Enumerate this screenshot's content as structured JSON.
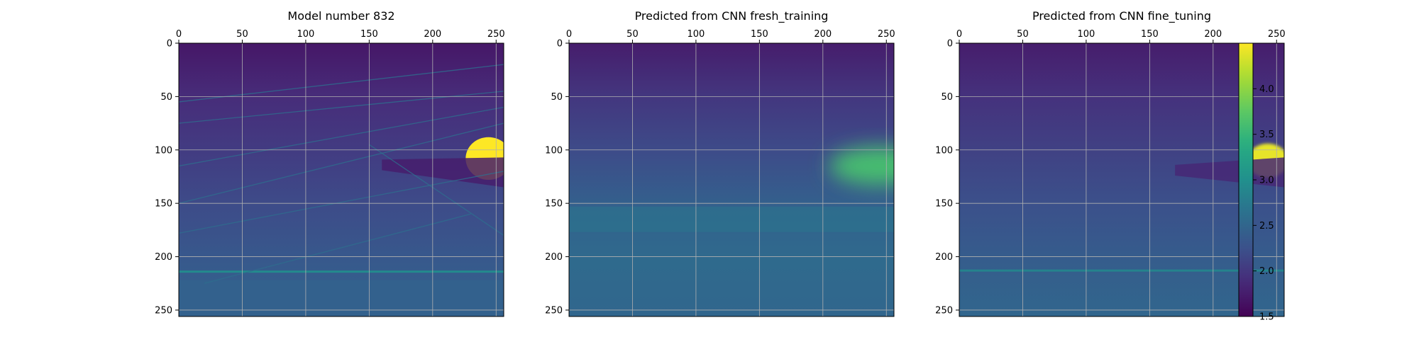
{
  "chart_data": {
    "type": "heatmap",
    "colormap": "viridis",
    "grid": true,
    "panels": [
      {
        "title": "Model number 832",
        "x_ticks": [
          "0",
          "50",
          "100",
          "150",
          "200",
          "250"
        ],
        "y_ticks": [
          "0",
          "50",
          "100",
          "150",
          "200",
          "250"
        ],
        "xlim": [
          0,
          256
        ],
        "ylim": [
          256,
          0
        ],
        "background_levels": [
          1.7,
          1.9,
          2.05,
          2.2,
          2.35,
          2.5
        ],
        "features": [
          {
            "kind": "blob",
            "center": [
              244,
              108
            ],
            "radius": [
              18,
              20
            ],
            "value": 4.5
          },
          {
            "kind": "wedge-band",
            "from": [
              160,
              115
            ],
            "to": [
              256,
              125
            ],
            "value": 1.75
          },
          {
            "kind": "bright-line",
            "y": 214,
            "value": 3.0
          },
          {
            "kind": "lower-layer",
            "y_from": 222,
            "value": 2.45
          }
        ]
      },
      {
        "title": "Predicted from CNN fresh_training",
        "x_ticks": [
          "0",
          "50",
          "100",
          "150",
          "200",
          "250"
        ],
        "y_ticks": [
          "0",
          "50",
          "100",
          "150",
          "200",
          "250"
        ],
        "xlim": [
          0,
          256
        ],
        "ylim": [
          256,
          0
        ],
        "background_levels": [
          1.75,
          2.0,
          2.2,
          2.45,
          2.55,
          2.5
        ],
        "features": [
          {
            "kind": "blob",
            "center": [
              245,
              115
            ],
            "radius": [
              40,
              18
            ],
            "value": 3.6
          },
          {
            "kind": "band",
            "y": 165,
            "value": 2.7
          }
        ]
      },
      {
        "title": "Predicted from CNN fine_tuning",
        "x_ticks": [
          "0",
          "50",
          "100",
          "150",
          "200",
          "250"
        ],
        "y_ticks": [
          "0",
          "50",
          "100",
          "150",
          "200",
          "250"
        ],
        "xlim": [
          0,
          256
        ],
        "ylim": [
          256,
          0
        ],
        "background_levels": [
          1.75,
          1.95,
          2.1,
          2.25,
          2.4,
          2.5
        ],
        "features": [
          {
            "kind": "blob",
            "center": [
              243,
              110
            ],
            "radius": [
              16,
              16
            ],
            "value": 4.4
          },
          {
            "kind": "bright-line",
            "y": 213,
            "value": 2.9
          },
          {
            "kind": "wedge-band",
            "from": [
              170,
              120
            ],
            "to": [
              256,
              125
            ],
            "value": 1.85
          }
        ]
      }
    ],
    "colorbar": {
      "range": [
        1.5,
        4.5
      ],
      "ticks": [
        "1.5",
        "2.0",
        "2.5",
        "3.0",
        "3.5",
        "4.0"
      ]
    }
  }
}
